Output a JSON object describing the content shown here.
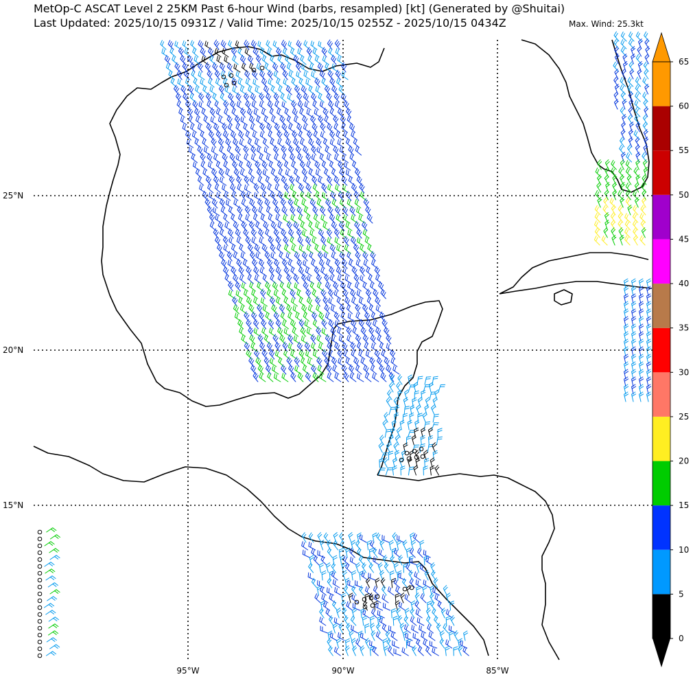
{
  "header": {
    "title_line1": "MetOp-C ASCAT Level 2 25KM Past 6-hour Wind (barbs, resampled) [kt] (Generated by @Shuitai)",
    "title_line2": "Last Updated: 2025/10/15 0931Z / Valid Time: 2025/10/15 0255Z - 2025/10/15 0434Z",
    "max_wind": "Max. Wind: 25.3kt"
  },
  "map": {
    "lat_labels": [
      "25°N",
      "20°N",
      "15°N"
    ],
    "lon_labels": [
      "95°W",
      "90°W",
      "85°W"
    ],
    "extent": {
      "lon_min": -100,
      "lon_max": -80.5,
      "lat_min": 10.0,
      "lat_max": 30.0
    }
  },
  "colorbar": {
    "unit": "kt",
    "ticks": [
      "0",
      "5",
      "10",
      "15",
      "20",
      "25",
      "30",
      "35",
      "40",
      "45",
      "50",
      "55",
      "60",
      "65"
    ],
    "colors": [
      "#000000",
      "#0099ff",
      "#0033ff",
      "#00cc00",
      "#ffee22",
      "#ff7766",
      "#ff0000",
      "#b87a4a",
      "#ff00ff",
      "#a000cc",
      "#cc0000",
      "#aa0000",
      "#ff9900",
      "#ff9900"
    ]
  },
  "wind_colors": {
    "calm": "#000000",
    "light": "#0099ee",
    "moderate": "#0033dd",
    "fresh": "#00cc00",
    "strong": "#ffee22"
  }
}
